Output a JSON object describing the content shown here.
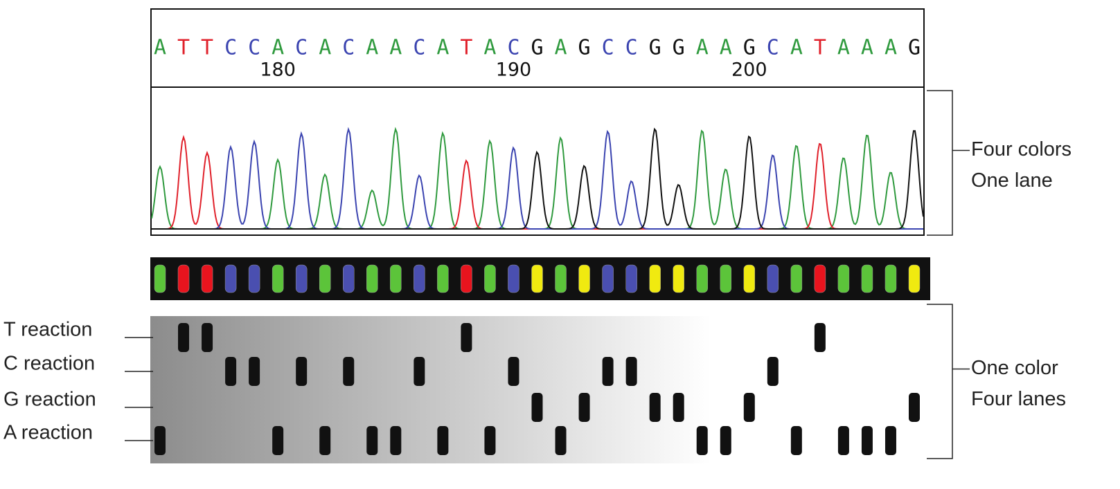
{
  "sequence": {
    "bases": [
      "A",
      "T",
      "T",
      "C",
      "C",
      "A",
      "C",
      "A",
      "C",
      "A",
      "A",
      "C",
      "A",
      "T",
      "A",
      "C",
      "G",
      "A",
      "G",
      "C",
      "C",
      "G",
      "G",
      "A",
      "A",
      "G",
      "C",
      "A",
      "T",
      "A",
      "A",
      "A",
      "G"
    ],
    "position_labels": [
      180,
      190,
      200
    ]
  },
  "trace_colors": {
    "A": "#2f9a3e",
    "T": "#e0212b",
    "C": "#3b44b0",
    "G": "#111111"
  },
  "dye_colors": {
    "A": "#5cc43a",
    "T": "#e8141e",
    "C": "#4a4fb0",
    "G": "#f0ea10"
  },
  "lanes": {
    "labels": [
      "T reaction",
      "C reaction",
      "G reaction",
      "A reaction"
    ]
  },
  "brackets": [
    {
      "lines": [
        "Four colors",
        "One lane"
      ]
    },
    {
      "lines": [
        "One color",
        "Four lanes"
      ]
    }
  ]
}
